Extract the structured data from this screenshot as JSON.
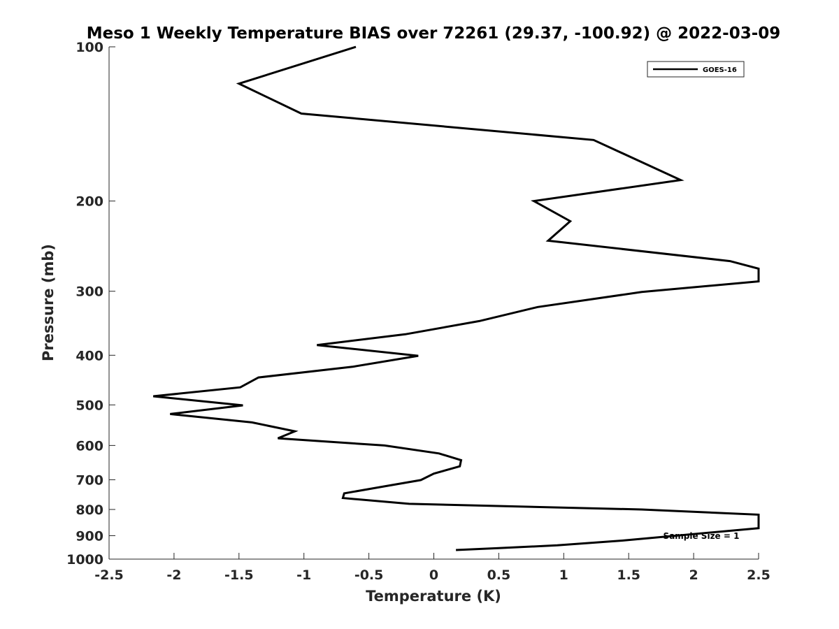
{
  "chart_data": {
    "type": "line",
    "title": "Meso 1 Weekly Temperature BIAS over 72261 (29.37, -100.92) @ 2022-03-09",
    "xlabel": "Temperature (K)",
    "ylabel": "Pressure (mb)",
    "xlim": [
      -2.5,
      2.5
    ],
    "ylim": [
      100,
      1000
    ],
    "y_scale": "log",
    "y_reversed": true,
    "grid": false,
    "x_ticks": [
      -2.5,
      -2,
      -1.5,
      -1,
      -0.5,
      0,
      0.5,
      1,
      1.5,
      2,
      2.5
    ],
    "x_tick_labels": [
      "-2.5",
      "-2",
      "-1.5",
      "-1",
      "-0.5",
      "0",
      "0.5",
      "1",
      "1.5",
      "2",
      "2.5"
    ],
    "y_ticks": [
      100,
      200,
      300,
      400,
      500,
      600,
      700,
      800,
      900,
      1000
    ],
    "y_tick_labels": [
      "100",
      "200",
      "300",
      "400",
      "500",
      "600",
      "700",
      "800",
      "900",
      "1000"
    ],
    "legend_position": "top-right",
    "series": [
      {
        "name": "GOES-16",
        "color": "#000000",
        "points": [
          {
            "x": -0.6,
            "y": 100
          },
          {
            "x": -1.5,
            "y": 118
          },
          {
            "x": -1.02,
            "y": 135
          },
          {
            "x": 1.23,
            "y": 152
          },
          {
            "x": 1.9,
            "y": 182
          },
          {
            "x": 0.77,
            "y": 200
          },
          {
            "x": 1.05,
            "y": 219
          },
          {
            "x": 0.88,
            "y": 239
          },
          {
            "x": 2.28,
            "y": 262
          },
          {
            "x": 2.5,
            "y": 271
          },
          {
            "x": 2.5,
            "y": 287
          },
          {
            "x": 1.6,
            "y": 301
          },
          {
            "x": 0.8,
            "y": 322
          },
          {
            "x": 0.35,
            "y": 343
          },
          {
            "x": -0.22,
            "y": 364
          },
          {
            "x": -0.9,
            "y": 382
          },
          {
            "x": -0.12,
            "y": 401
          },
          {
            "x": -0.62,
            "y": 421
          },
          {
            "x": -1.35,
            "y": 442
          },
          {
            "x": -1.49,
            "y": 462
          },
          {
            "x": -2.16,
            "y": 481
          },
          {
            "x": -1.47,
            "y": 501
          },
          {
            "x": -2.03,
            "y": 521
          },
          {
            "x": -1.4,
            "y": 541
          },
          {
            "x": -1.07,
            "y": 563
          },
          {
            "x": -1.2,
            "y": 581
          },
          {
            "x": -0.38,
            "y": 600
          },
          {
            "x": 0.04,
            "y": 622
          },
          {
            "x": 0.21,
            "y": 641
          },
          {
            "x": 0.2,
            "y": 659
          },
          {
            "x": 0.0,
            "y": 681
          },
          {
            "x": -0.1,
            "y": 701
          },
          {
            "x": -0.38,
            "y": 721
          },
          {
            "x": -0.69,
            "y": 744
          },
          {
            "x": -0.7,
            "y": 760
          },
          {
            "x": -0.19,
            "y": 780
          },
          {
            "x": 1.6,
            "y": 800
          },
          {
            "x": 2.5,
            "y": 819
          },
          {
            "x": 2.5,
            "y": 870
          },
          {
            "x": 1.45,
            "y": 920
          },
          {
            "x": 0.95,
            "y": 940
          },
          {
            "x": 0.5,
            "y": 952
          },
          {
            "x": 0.17,
            "y": 960
          }
        ]
      }
    ],
    "annotations": [
      "Sample Size = 1"
    ]
  }
}
